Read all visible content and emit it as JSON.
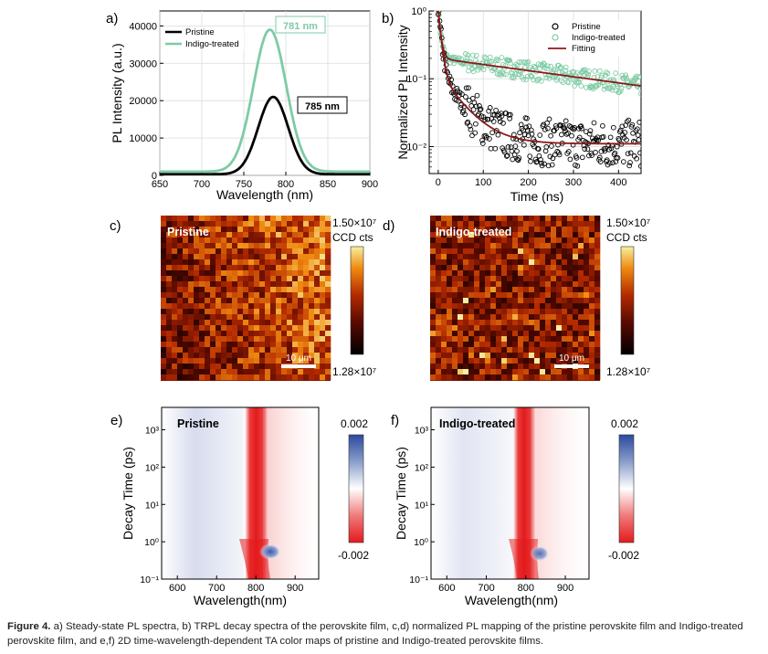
{
  "caption": {
    "label": "Figure 4.",
    "text": "a) Steady-state PL spectra, b) TRPL decay spectra of the perovskite film, c,d) normalized PL mapping of the pristine perovskite film and Indigo-treated perovskite film, and e,f) 2D time-wavelength-dependent TA color maps of pristine and Indigo-treated perovskite films."
  },
  "panel_letters": {
    "a": "a)",
    "b": "b)",
    "c": "c)",
    "d": "d)",
    "e": "e)",
    "f": "f)"
  },
  "colors": {
    "pristine": "#000000",
    "indigo": "#7ecba4",
    "fitting": "#8b1a1a",
    "ta_positive": "#2b4a9e",
    "ta_negative": "#e41a1c"
  },
  "chart_data": [
    {
      "id": "a",
      "type": "line",
      "xlabel": "Wavelength (nm)",
      "ylabel": "PL Intensity (a.u.)",
      "xlim": [
        650,
        900
      ],
      "ylim": [
        0,
        44000
      ],
      "xticks": [
        "650",
        "700",
        "750",
        "800",
        "850",
        "900"
      ],
      "yticks": [
        "0",
        "10000",
        "20000",
        "30000",
        "40000"
      ],
      "legend": {
        "placement": "top-left",
        "entries": [
          "Pristine",
          "Indigo-treated"
        ]
      },
      "annotations": [
        "781 nm",
        "785 nm"
      ],
      "series": [
        {
          "name": "Pristine",
          "peak_x": 785,
          "peak_y": 21000,
          "fwhm": 42,
          "baseline": 300
        },
        {
          "name": "Indigo-treated",
          "peak_x": 781,
          "peak_y": 39000,
          "fwhm": 46,
          "baseline": 1000
        }
      ]
    },
    {
      "id": "b",
      "type": "scatter",
      "xlabel": "Time (ns)",
      "ylabel": "Normalized PL Intensity",
      "xlim": [
        -20,
        450
      ],
      "ylim": [
        0.004,
        1.0
      ],
      "yscale": "log",
      "xticks": [
        "0",
        "100",
        "200",
        "300",
        "400"
      ],
      "yticks": [
        "10⁰",
        "10⁻¹",
        "10⁻²"
      ],
      "legend": {
        "placement": "top-right",
        "entries": [
          "Pristine",
          "Indigo-treated",
          "Fitting"
        ]
      },
      "series": [
        {
          "name": "Pristine",
          "y_at_0": 1.0,
          "fast_amp": 0.87,
          "fast_tau": 6,
          "slow_amp": 0.11,
          "slow_tau": 45,
          "tail": 0.011
        },
        {
          "name": "Indigo-treated",
          "y_at_0": 1.0,
          "fast_amp": 0.8,
          "fast_tau": 5,
          "slow_amp": 0.2,
          "slow_tau": 480,
          "tail": 0
        }
      ]
    },
    {
      "id": "c",
      "type": "heatmap",
      "label": "Pristine",
      "colorbar": {
        "max": "1.50×10⁷",
        "unit": "CCD cts",
        "min": "1.28×10⁷"
      },
      "scalebar": "10 μm"
    },
    {
      "id": "d",
      "type": "heatmap",
      "label": "Indigo-treated",
      "colorbar": {
        "max": "1.50×10⁷",
        "unit": "CCD cts",
        "min": "1.28×10⁷"
      },
      "scalebar": "10 μm"
    },
    {
      "id": "e",
      "type": "heatmap",
      "label": "Pristine",
      "xlabel": "Wavelength(nm)",
      "ylabel": "Decay Time (ps)",
      "xticks": [
        "600",
        "700",
        "800",
        "900"
      ],
      "yticks": [
        "10³",
        "10²",
        "10¹",
        "10⁰",
        "10⁻¹"
      ],
      "colorbar": {
        "max": "0.002",
        "min": "-0.002"
      },
      "bleach_center_nm": 777
    },
    {
      "id": "f",
      "type": "heatmap",
      "label": "Indigo-treated",
      "xlabel": "Wavelength(nm)",
      "ylabel": "Decay Time (ps)",
      "xticks": [
        "600",
        "700",
        "800",
        "900"
      ],
      "yticks": [
        "10³",
        "10²",
        "10¹",
        "10⁰",
        "10⁻¹"
      ],
      "colorbar": {
        "max": "0.002",
        "min": "-0.002"
      },
      "bleach_center_nm": 777
    }
  ]
}
